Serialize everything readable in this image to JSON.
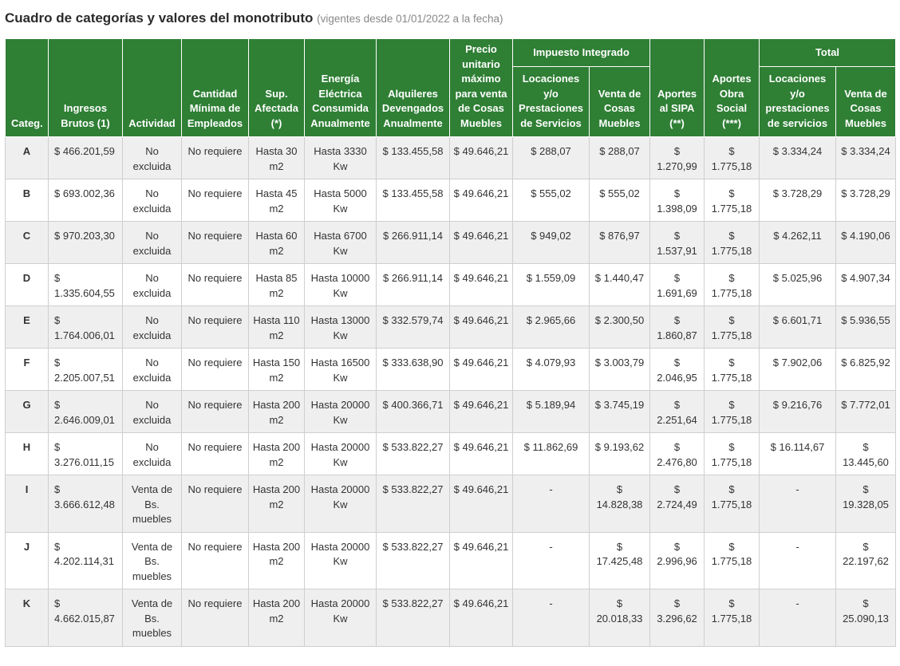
{
  "title": "Cuadro de categorías y valores del monotributo",
  "subtitle": "(vigentes desde 01/01/2022 a la fecha)",
  "headers": {
    "categ": "Categ.",
    "ingresos": "Ingresos Brutos (1)",
    "actividad": "Actividad",
    "empleados": "Cantidad Mínima de Empleados",
    "superficie": "Sup. Afectada (*)",
    "energia": "Energía Eléctrica Consumida Anualmente",
    "alquileres": "Alquileres Devengados Anualmente",
    "precio": "Precio unitario máximo para venta de Cosas Muebles",
    "impuesto_group": "Impuesto Integrado",
    "imp_locaciones": "Locaciones y/o Prestaciones de Servicios",
    "imp_venta": "Venta de Cosas Muebles",
    "sipa": "Aportes al SIPA (**)",
    "obra_social": "Aportes Obra Social (***)",
    "total_group": "Total",
    "tot_locaciones": "Locaciones y/o prestaciones de servicios",
    "tot_venta": "Venta de Cosas Muebles"
  },
  "rows": [
    {
      "cat": "A",
      "ingresos": "$ 466.201,59",
      "actividad": "No excluida",
      "empleados": "No requiere",
      "superficie": "Hasta 30 m2",
      "energia": "Hasta 3330 Kw",
      "alquileres": "$ 133.455,58",
      "precio": "$ 49.646,21",
      "imp_loc": "$ 288,07",
      "imp_venta": "$ 288,07",
      "sipa": "$ 1.270,99",
      "obra": "$ 1.775,18",
      "tot_loc": "$ 3.334,24",
      "tot_venta": "$ 3.334,24"
    },
    {
      "cat": "B",
      "ingresos": "$ 693.002,36",
      "actividad": "No excluida",
      "empleados": "No requiere",
      "superficie": "Hasta 45 m2",
      "energia": "Hasta 5000 Kw",
      "alquileres": "$ 133.455,58",
      "precio": "$ 49.646,21",
      "imp_loc": "$ 555,02",
      "imp_venta": "$ 555,02",
      "sipa": "$ 1.398,09",
      "obra": "$ 1.775,18",
      "tot_loc": "$ 3.728,29",
      "tot_venta": "$ 3.728,29"
    },
    {
      "cat": "C",
      "ingresos": "$ 970.203,30",
      "actividad": "No excluida",
      "empleados": "No requiere",
      "superficie": "Hasta 60 m2",
      "energia": "Hasta 6700 Kw",
      "alquileres": "$ 266.911,14",
      "precio": "$ 49.646,21",
      "imp_loc": "$ 949,02",
      "imp_venta": "$ 876,97",
      "sipa": "$ 1.537,91",
      "obra": "$ 1.775,18",
      "tot_loc": "$ 4.262,11",
      "tot_venta": "$ 4.190,06"
    },
    {
      "cat": "D",
      "ingresos": "$ 1.335.604,55",
      "actividad": "No excluida",
      "empleados": "No requiere",
      "superficie": "Hasta 85 m2",
      "energia": "Hasta 10000 Kw",
      "alquileres": "$ 266.911,14",
      "precio": "$ 49.646,21",
      "imp_loc": "$ 1.559,09",
      "imp_venta": "$ 1.440,47",
      "sipa": "$ 1.691,69",
      "obra": "$ 1.775,18",
      "tot_loc": "$ 5.025,96",
      "tot_venta": "$ 4.907,34"
    },
    {
      "cat": "E",
      "ingresos": "$ 1.764.006,01",
      "actividad": "No excluida",
      "empleados": "No requiere",
      "superficie": "Hasta 110 m2",
      "energia": "Hasta 13000 Kw",
      "alquileres": "$ 332.579,74",
      "precio": "$ 49.646,21",
      "imp_loc": "$ 2.965,66",
      "imp_venta": "$ 2.300,50",
      "sipa": "$ 1.860,87",
      "obra": "$ 1.775,18",
      "tot_loc": "$ 6.601,71",
      "tot_venta": "$ 5.936,55"
    },
    {
      "cat": "F",
      "ingresos": "$ 2.205.007,51",
      "actividad": "No excluida",
      "empleados": "No requiere",
      "superficie": "Hasta 150 m2",
      "energia": "Hasta 16500 Kw",
      "alquileres": "$ 333.638,90",
      "precio": "$ 49.646,21",
      "imp_loc": "$ 4.079,93",
      "imp_venta": "$ 3.003,79",
      "sipa": "$ 2.046,95",
      "obra": "$ 1.775,18",
      "tot_loc": "$ 7.902,06",
      "tot_venta": "$ 6.825,92"
    },
    {
      "cat": "G",
      "ingresos": "$ 2.646.009,01",
      "actividad": "No excluida",
      "empleados": "No requiere",
      "superficie": "Hasta 200 m2",
      "energia": "Hasta 20000 Kw",
      "alquileres": "$ 400.366,71",
      "precio": "$ 49.646,21",
      "imp_loc": "$ 5.189,94",
      "imp_venta": "$ 3.745,19",
      "sipa": "$ 2.251,64",
      "obra": "$ 1.775,18",
      "tot_loc": "$ 9.216,76",
      "tot_venta": "$ 7.772,01"
    },
    {
      "cat": "H",
      "ingresos": "$ 3.276.011,15",
      "actividad": "No excluida",
      "empleados": "No requiere",
      "superficie": "Hasta 200 m2",
      "energia": "Hasta 20000 Kw",
      "alquileres": "$ 533.822,27",
      "precio": "$ 49.646,21",
      "imp_loc": "$ 11.862,69",
      "imp_venta": "$ 9.193,62",
      "sipa": "$ 2.476,80",
      "obra": "$ 1.775,18",
      "tot_loc": "$ 16.114,67",
      "tot_venta": "$ 13.445,60"
    },
    {
      "cat": "I",
      "ingresos": "$ 3.666.612,48",
      "actividad": "Venta de Bs. muebles",
      "empleados": "No requiere",
      "superficie": "Hasta 200 m2",
      "energia": "Hasta 20000 Kw",
      "alquileres": "$ 533.822,27",
      "precio": "$ 49.646,21",
      "imp_loc": "-",
      "imp_venta": "$ 14.828,38",
      "sipa": "$ 2.724,49",
      "obra": "$ 1.775,18",
      "tot_loc": "-",
      "tot_venta": "$ 19.328,05"
    },
    {
      "cat": "J",
      "ingresos": "$ 4.202.114,31",
      "actividad": "Venta de Bs. muebles",
      "empleados": "No requiere",
      "superficie": "Hasta 200 m2",
      "energia": "Hasta 20000 Kw",
      "alquileres": "$ 533.822,27",
      "precio": "$ 49.646,21",
      "imp_loc": "-",
      "imp_venta": "$ 17.425,48",
      "sipa": "$ 2.996,96",
      "obra": "$ 1.775,18",
      "tot_loc": "-",
      "tot_venta": "$ 22.197,62"
    },
    {
      "cat": "K",
      "ingresos": "$ 4.662.015,87",
      "actividad": "Venta de Bs. muebles",
      "empleados": "No requiere",
      "superficie": "Hasta 200 m2",
      "energia": "Hasta 20000 Kw",
      "alquileres": "$ 533.822,27",
      "precio": "$ 49.646,21",
      "imp_loc": "-",
      "imp_venta": "$ 20.018,33",
      "sipa": "$ 3.296,62",
      "obra": "$ 1.775,18",
      "tot_loc": "-",
      "tot_venta": "$ 25.090,13"
    }
  ]
}
